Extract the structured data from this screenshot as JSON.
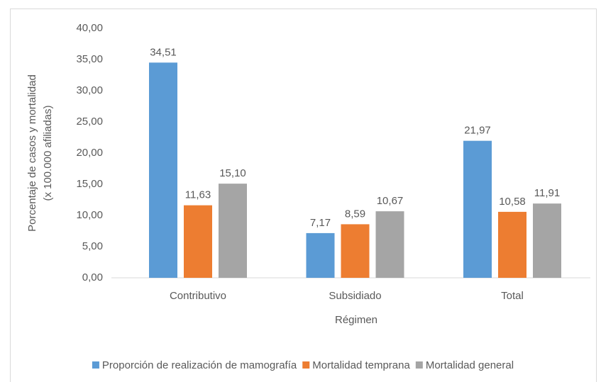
{
  "chart_data": {
    "type": "bar",
    "categories": [
      "Contributivo",
      "Subsidiado",
      "Total"
    ],
    "series": [
      {
        "name": "Proporción de realización de mamografía",
        "color": "#5b9bd5",
        "values": [
          34.51,
          7.17,
          21.97
        ],
        "value_labels": [
          "34,51",
          "7,17",
          "21,97"
        ]
      },
      {
        "name": "Mortalidad temprana",
        "color": "#ed7d31",
        "values": [
          11.63,
          8.59,
          10.58
        ],
        "value_labels": [
          "11,63",
          "8,59",
          "10,58"
        ]
      },
      {
        "name": "Mortalidad general",
        "color": "#a5a5a5",
        "values": [
          15.1,
          10.67,
          11.91
        ],
        "value_labels": [
          "15,10",
          "10,67",
          "11,91"
        ]
      }
    ],
    "x_label": "Régimen",
    "y_label": [
      "Porcentaje de casos y mortalidad",
      "(x 100.000 afiliadas)"
    ],
    "ylim": [
      0,
      40
    ],
    "yticks": [
      {
        "value": 0,
        "label": "0,00"
      },
      {
        "value": 5,
        "label": "5,00"
      },
      {
        "value": 10,
        "label": "10,00"
      },
      {
        "value": 15,
        "label": "15,00"
      },
      {
        "value": 20,
        "label": "20,00"
      },
      {
        "value": 25,
        "label": "25,00"
      },
      {
        "value": 30,
        "label": "30,00"
      },
      {
        "value": 35,
        "label": "35,00"
      },
      {
        "value": 40,
        "label": "40,00"
      }
    ],
    "grid": false,
    "legend": "bottom"
  }
}
